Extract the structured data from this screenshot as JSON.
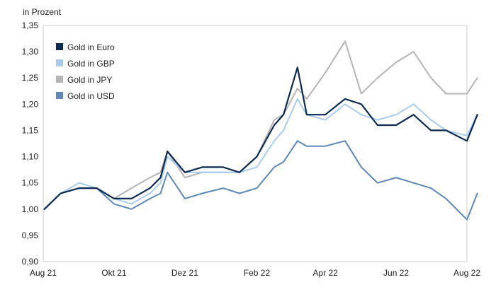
{
  "chart_data": {
    "type": "line",
    "title": "",
    "unit_label": "in Prozent",
    "xlabel": "",
    "ylabel": "",
    "ylim": [
      0.9,
      1.35
    ],
    "y_ticks": [
      "0,90",
      "0,95",
      "1,00",
      "1,05",
      "1,10",
      "1,15",
      "1,20",
      "1,25",
      "1,30",
      "1,35"
    ],
    "y_tick_values": [
      0.9,
      0.95,
      1.0,
      1.05,
      1.1,
      1.15,
      1.2,
      1.25,
      1.3,
      1.35
    ],
    "x_ticks": [
      "Aug 21",
      "Okt 21",
      "Dez 21",
      "Feb 22",
      "Apr 22",
      "Jun 22",
      "Aug 22"
    ],
    "x_tick_values": [
      "2021-08-01",
      "2021-10-01",
      "2021-12-01",
      "2022-02-01",
      "2022-04-01",
      "2022-06-01",
      "2022-08-01"
    ],
    "grid": false,
    "legend_position": "top-left",
    "x": [
      "2021-08-02",
      "2021-08-16",
      "2021-09-01",
      "2021-09-16",
      "2021-10-01",
      "2021-10-16",
      "2021-11-01",
      "2021-11-10",
      "2021-11-16",
      "2021-12-01",
      "2021-12-16",
      "2022-01-03",
      "2022-01-17",
      "2022-02-01",
      "2022-02-16",
      "2022-02-24",
      "2022-03-08",
      "2022-03-16",
      "2022-04-01",
      "2022-04-18",
      "2022-05-02",
      "2022-05-16",
      "2022-06-01",
      "2022-06-16",
      "2022-07-01",
      "2022-07-14",
      "2022-08-01",
      "2022-08-10"
    ],
    "series": [
      {
        "name": "Gold in Euro",
        "color": "#0d2a52",
        "values": [
          1.0,
          1.03,
          1.04,
          1.04,
          1.02,
          1.02,
          1.04,
          1.06,
          1.11,
          1.07,
          1.08,
          1.08,
          1.07,
          1.1,
          1.16,
          1.18,
          1.27,
          1.18,
          1.18,
          1.21,
          1.2,
          1.16,
          1.16,
          1.18,
          1.15,
          1.15,
          1.13,
          1.18
        ]
      },
      {
        "name": "Gold in GBP",
        "color": "#a9cbec",
        "values": [
          1.0,
          1.03,
          1.05,
          1.04,
          1.02,
          1.01,
          1.03,
          1.05,
          1.1,
          1.07,
          1.07,
          1.07,
          1.07,
          1.08,
          1.13,
          1.15,
          1.21,
          1.18,
          1.17,
          1.2,
          1.18,
          1.17,
          1.18,
          1.2,
          1.17,
          1.15,
          1.14,
          1.18
        ]
      },
      {
        "name": "Gold in JPY",
        "color": "#b5b5b5",
        "values": [
          1.0,
          1.03,
          1.04,
          1.04,
          1.02,
          1.04,
          1.06,
          1.07,
          1.11,
          1.06,
          1.07,
          1.07,
          1.07,
          1.1,
          1.17,
          1.18,
          1.23,
          1.21,
          1.26,
          1.32,
          1.22,
          1.25,
          1.28,
          1.3,
          1.25,
          1.22,
          1.22,
          1.25
        ]
      },
      {
        "name": "Gold in USD",
        "color": "#5d87b8",
        "values": [
          1.0,
          1.03,
          1.04,
          1.04,
          1.01,
          1.0,
          1.02,
          1.03,
          1.07,
          1.02,
          1.03,
          1.04,
          1.03,
          1.04,
          1.08,
          1.09,
          1.13,
          1.12,
          1.12,
          1.13,
          1.08,
          1.05,
          1.06,
          1.05,
          1.04,
          1.02,
          0.98,
          1.03
        ]
      }
    ]
  }
}
